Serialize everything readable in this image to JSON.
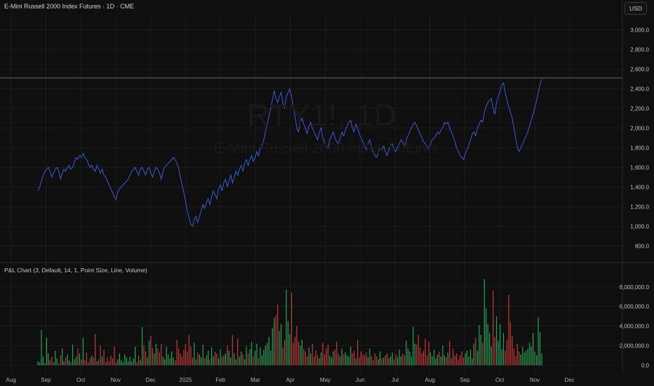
{
  "header": {
    "title": "E-Mini Russell 2000 Index Futures · 1D · CME",
    "currency": "USD"
  },
  "watermark": {
    "symbol": "RTY1!, 1D",
    "name": "E-Mini Russell 2000 Index Futures"
  },
  "indicator": {
    "label": "P&L Chart (3, Default, 14, 1, Point Size, Line, Volume)"
  },
  "colors": {
    "line": "#3b5bdb",
    "up": "#26a65b",
    "down": "#c93a3a",
    "grid": "#1c1c1c",
    "hline": "#6a6a6a"
  },
  "chart_data": [
    {
      "type": "line",
      "series": [
        {
          "values": [
            1360,
            1400,
            1460,
            1520,
            1560,
            1580,
            1600,
            1560,
            1500,
            1540,
            1580,
            1600,
            1560,
            1480,
            1540,
            1580,
            1560,
            1600,
            1620,
            1580,
            1600,
            1650,
            1700,
            1680,
            1720,
            1700,
            1740,
            1700,
            1680,
            1640,
            1600,
            1620,
            1580,
            1560,
            1620,
            1580,
            1540,
            1580,
            1520,
            1500,
            1460,
            1420,
            1380,
            1340,
            1300,
            1270,
            1350,
            1380,
            1400,
            1420,
            1440,
            1460,
            1480,
            1520,
            1560,
            1580,
            1600,
            1560,
            1520,
            1580,
            1600,
            1560,
            1520,
            1580,
            1600,
            1540,
            1500,
            1560,
            1600,
            1580,
            1540,
            1480,
            1560,
            1600,
            1620,
            1640,
            1660,
            1680,
            1700,
            1680,
            1640,
            1600,
            1500,
            1420,
            1340,
            1260,
            1160,
            1080,
            1020,
            1000,
            1060,
            1100,
            1040,
            1100,
            1160,
            1220,
            1180,
            1240,
            1280,
            1220,
            1300,
            1360,
            1320,
            1280,
            1380,
            1420,
            1360,
            1440,
            1480,
            1400,
            1460,
            1520,
            1440,
            1500,
            1560,
            1520,
            1580,
            1620,
            1560,
            1640,
            1680,
            1620,
            1680,
            1720,
            1660,
            1700,
            1760,
            1720,
            1800,
            1820,
            1880,
            1960,
            2040,
            2120,
            2200,
            2280,
            2380,
            2300,
            2260,
            2320,
            2360,
            2260,
            2200,
            2320,
            2360,
            2400,
            2320,
            2220,
            2120,
            2000,
            1960,
            2060,
            2100,
            2040,
            2000,
            1940,
            2020,
            2060,
            2000,
            1960,
            1920,
            1880,
            1960,
            2000,
            1900,
            1860,
            1820,
            1800,
            1880,
            1920,
            1960,
            1900,
            1860,
            1840,
            1900,
            1960,
            1920,
            1980,
            2020,
            2060,
            2080,
            2000,
            1960,
            2040,
            2000,
            1940,
            1900,
            1860,
            1820,
            1780,
            1840,
            1880,
            1800,
            1760,
            1720,
            1700,
            1760,
            1800,
            1780,
            1820,
            1760,
            1720,
            1780,
            1820,
            1840,
            1780,
            1760,
            1800,
            1840,
            1880,
            1860,
            1800,
            1880,
            1920,
            1960,
            2000,
            2040,
            2060,
            2020,
            1980,
            1940,
            1900,
            1860,
            1840,
            1820,
            1780,
            1840,
            1880,
            1900,
            1920,
            1960,
            1940,
            1980,
            2000,
            2060,
            2040,
            2060,
            2000,
            1960,
            1920,
            1860,
            1800,
            1760,
            1720,
            1700,
            1680,
            1740,
            1780,
            1820,
            1880,
            1940,
            1960,
            1920,
            2000,
            2040,
            2080,
            2060,
            2160,
            2220,
            2260,
            2280,
            2300,
            2200,
            2140,
            2260,
            2320,
            2380,
            2440,
            2460,
            2360,
            2280,
            2220,
            2160,
            2100,
            2000,
            1900,
            1800,
            1760,
            1800,
            1840,
            1880,
            1920,
            1960,
            2020,
            2080,
            2140,
            2200,
            2280,
            2360,
            2440,
            2500
          ]
        }
      ],
      "y_ticks": [
        "3,000.0",
        "2,800.0",
        "2,600.0",
        "2,400.0",
        "2,200.0",
        "2,000.0",
        "1,800.0",
        "1,600.0",
        "1,400.0",
        "1,200.0",
        "1,000.0",
        "800.0"
      ],
      "y_tick_values": [
        3000,
        2800,
        2600,
        2400,
        2200,
        2000,
        1800,
        1600,
        1400,
        1200,
        1000,
        800
      ],
      "ylim": [
        660,
        3160
      ],
      "hline_value": 2510,
      "x_ticks": [
        "Aug",
        "Sep",
        "Oct",
        "Nov",
        "Dec",
        "2025",
        "Feb",
        "Mar",
        "Apr",
        "May",
        "Jun",
        "Jul",
        "Aug",
        "Sep",
        "Oct",
        "Nov",
        "Dec"
      ],
      "x_tick_positions": [
        0.0,
        0.0806,
        0.1613,
        0.2419,
        0.3226,
        0.4032,
        0.4839,
        0.5645,
        0.6452,
        0.7258,
        0.8065,
        0.8871,
        0.9677,
        1.0484,
        1.129,
        1.2097,
        1.2903
      ],
      "x_range": [
        -0.0254,
        1.4124
      ]
    },
    {
      "type": "bar",
      "series": [
        {
          "values": [
            400000,
            300000,
            3600000,
            900000,
            200000,
            2800000,
            1200000,
            500000,
            900000,
            300000,
            1500000,
            700000,
            200000,
            1000000,
            1700000,
            400000,
            800000,
            1100000,
            500000,
            300000,
            2100000,
            600000,
            900000,
            1700000,
            1200000,
            600000,
            2800000,
            500000,
            1300000,
            300000,
            700000,
            1000000,
            800000,
            3200000,
            400000,
            600000,
            2000000,
            900000,
            1600000,
            300000,
            800000,
            400000,
            1000000,
            700000,
            1900000,
            300000,
            600000,
            1200000,
            500000,
            300000,
            1100000,
            800000,
            400000,
            900000,
            400000,
            700000,
            1900000,
            300000,
            1000000,
            500000,
            3900000,
            2000000,
            1400000,
            800000,
            2500000,
            3000000,
            1800000,
            1200000,
            2200000,
            1700000,
            1300000,
            2200000,
            900000,
            600000,
            1900000,
            1100000,
            700000,
            1400000,
            800000,
            500000,
            2600000,
            1700000,
            1200000,
            900000,
            1600000,
            2200000,
            1400000,
            3100000,
            1900000,
            800000,
            2300000,
            600000,
            1300000,
            1100000,
            800000,
            2100000,
            700000,
            1000000,
            1500000,
            600000,
            1800000,
            900000,
            1400000,
            1200000,
            700000,
            1600000,
            900000,
            1000000,
            1200000,
            2000000,
            1500000,
            800000,
            3100000,
            1200000,
            600000,
            2700000,
            900000,
            1400000,
            1100000,
            600000,
            1900000,
            1200000,
            1600000,
            2400000,
            900000,
            1500000,
            2200000,
            700000,
            1800000,
            1000000,
            1600000,
            2000000,
            2300000,
            2900000,
            1500000,
            3800000,
            4800000,
            5100000,
            6200000,
            3500000,
            4200000,
            1800000,
            2600000,
            7700000,
            4500000,
            3200000,
            7400000,
            2300000,
            2900000,
            4000000,
            2400000,
            2000000,
            2600000,
            1700000,
            1400000,
            900000,
            1800000,
            1200000,
            2200000,
            900000,
            1500000,
            1000000,
            700000,
            1300000,
            2300000,
            1100000,
            1700000,
            2100000,
            1000000,
            800000,
            1400000,
            1600000,
            2400000,
            1200000,
            900000,
            1700000,
            1100000,
            1300000,
            1000000,
            900000,
            1900000,
            1200000,
            1500000,
            700000,
            2600000,
            800000,
            1400000,
            1100000,
            1000000,
            1300000,
            800000,
            1700000,
            900000,
            500000,
            1200000,
            900000,
            600000,
            1400000,
            700000,
            800000,
            1000000,
            1200000,
            700000,
            900000,
            1300000,
            600000,
            1100000,
            800000,
            1600000,
            900000,
            1200000,
            1000000,
            2500000,
            1700000,
            1400000,
            900000,
            3900000,
            2200000,
            2100000,
            3100000,
            1800000,
            1200000,
            1500000,
            2700000,
            1000000,
            2400000,
            1300000,
            900000,
            1600000,
            700000,
            1100000,
            1400000,
            900000,
            2000000,
            1000000,
            800000,
            1300000,
            2500000,
            700000,
            1700000,
            1000000,
            1200000,
            600000,
            1000000,
            1400000,
            800000,
            1200000,
            1500000,
            900000,
            1600000,
            700000,
            2200000,
            2800000,
            1500000,
            4100000,
            3100000,
            2300000,
            8800000,
            5800000,
            4200000,
            3300000,
            1900000,
            7600000,
            2900000,
            5000000,
            2500000,
            4200000,
            1600000,
            3300000,
            1500000,
            2600000,
            7200000,
            4400000,
            3000000,
            1700000,
            900000,
            2200000,
            1400000,
            1100000,
            1900000,
            1300000,
            1500000,
            1700000,
            2300000,
            1900000,
            3300000,
            1400000,
            1000000,
            4900000,
            3400000,
            1200000
          ]
        }
      ],
      "y_ticks": [
        "8,000,000.0",
        "6,000,000.0",
        "4,000,000.0",
        "2,000,000.0",
        "0.0"
      ],
      "y_tick_values": [
        8000000,
        6000000,
        4000000,
        2000000,
        0
      ],
      "ylim": [
        -400000,
        9200000
      ]
    }
  ]
}
